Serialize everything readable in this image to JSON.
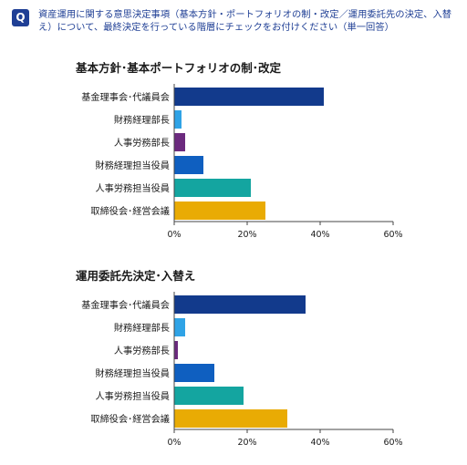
{
  "question": {
    "badge": "Q",
    "text": "資産運用に関する意思決定事項（基本方針・ポートフォリオの制・改定／運用委託先の決定、入替え）について、最終決定を行っている階層にチェックをお付けください（単一回答）"
  },
  "chart_data": [
    {
      "type": "bar",
      "orientation": "horizontal",
      "title": "基本方針･基本ポートフォリオの制･改定",
      "categories": [
        "基金理事会･代議員会",
        "財務経理部長",
        "人事労務部長",
        "財務経理担当役員",
        "人事労務担当役員",
        "取締役会･経営会議"
      ],
      "values": [
        41,
        2,
        3,
        8,
        21,
        25
      ],
      "colors": [
        "#123a8c",
        "#2fa3e6",
        "#6b2a7e",
        "#0f5fc0",
        "#14a5a0",
        "#e9ab04"
      ],
      "xlim": [
        0,
        60
      ],
      "xticks": [
        "0%",
        "20%",
        "40%",
        "60%"
      ],
      "grid": false
    },
    {
      "type": "bar",
      "orientation": "horizontal",
      "title": "運用委託先決定･入替え",
      "categories": [
        "基金理事会･代議員会",
        "財務経理部長",
        "人事労務部長",
        "財務経理担当役員",
        "人事労務担当役員",
        "取締役会･経営会議"
      ],
      "values": [
        36,
        3,
        1,
        11,
        19,
        31
      ],
      "colors": [
        "#123a8c",
        "#2fa3e6",
        "#6b2a7e",
        "#0f5fc0",
        "#14a5a0",
        "#e9ab04"
      ],
      "xlim": [
        0,
        60
      ],
      "xticks": [
        "0%",
        "20%",
        "40%",
        "60%"
      ],
      "grid": false
    }
  ]
}
